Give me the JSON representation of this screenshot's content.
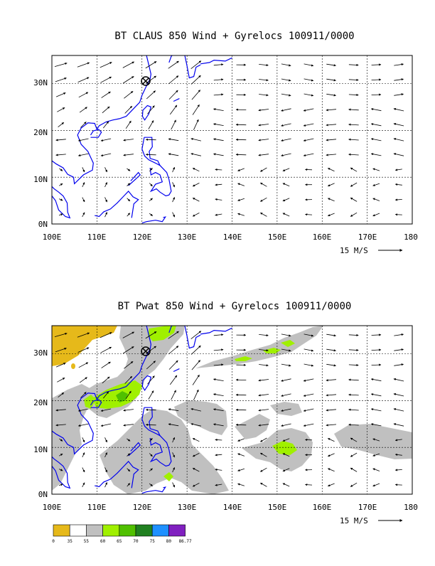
{
  "colors": {
    "coast": "#0000ee",
    "arrow": "#000000",
    "grid": "#000000",
    "marker": "#000000"
  },
  "chart_data": [
    {
      "type": "vector-map",
      "title": "BT CLAUS 850 Wind + Gyrelocs 100911/0000",
      "x_ticks": [
        "100E",
        "110E",
        "120E",
        "130E",
        "140E",
        "150E",
        "160E",
        "170E",
        "180"
      ],
      "y_ticks": [
        "0N",
        "10N",
        "20N",
        "30N"
      ],
      "xlim": [
        100,
        180
      ],
      "ylim": [
        0,
        36
      ],
      "grid": true,
      "reference_vector_label": "15 M/S",
      "gyre_marker": {
        "lon": 120.5,
        "lat": 30.5,
        "symbol": "circle-x"
      }
    },
    {
      "type": "vector-map-filled",
      "title": "BT Pwat 850 Wind + Gyrelocs 100911/0000",
      "x_ticks": [
        "100E",
        "110E",
        "120E",
        "130E",
        "140E",
        "150E",
        "160E",
        "170E",
        "180"
      ],
      "y_ticks": [
        "0N",
        "10N",
        "20N",
        "30N"
      ],
      "xlim": [
        100,
        180
      ],
      "ylim": [
        0,
        36
      ],
      "grid": true,
      "reference_vector_label": "15 M/S",
      "gyre_marker": {
        "lon": 120.5,
        "lat": 30.5,
        "symbol": "circle-x"
      },
      "colorbar": {
        "labels": [
          "0",
          "35",
          "55",
          "60",
          "65",
          "70",
          "75",
          "80",
          "86.77"
        ],
        "colors": [
          "#e6b91a",
          "#ffffff",
          "#c0c0c0",
          "#a0f000",
          "#50c000",
          "#208020",
          "#1e90ff",
          "#8020c0"
        ]
      },
      "shaded_regions": [
        {
          "level": "0-35",
          "color": "#e6b91a",
          "area": "NW China corner 100-114E 29-36N"
        },
        {
          "level": "55-60",
          "color": "#c0c0c0",
          "area": "Taiwan Strait / Philippines / equatorial bands"
        },
        {
          "level": "60-65",
          "color": "#a0f000",
          "area": "South China Sea 110-122E 18-25N, near 152E 9N"
        },
        {
          "level": "65-70",
          "color": "#50c000",
          "area": "115-117E 20-22N"
        }
      ]
    }
  ]
}
